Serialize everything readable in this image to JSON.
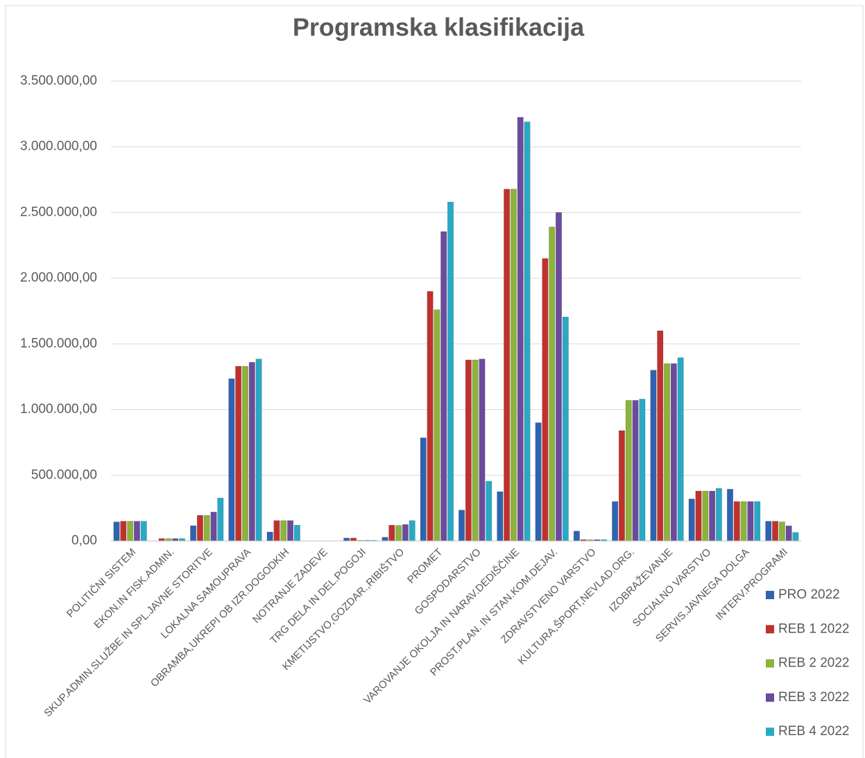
{
  "chart_data": {
    "type": "bar",
    "title": "Programska klasifikacija",
    "categories": [
      "POLITIČNI SISTEM",
      "EKON.IN FISK.ADMIN.",
      "SKUP.ADMIN.SLUŽBE IN SPL.JAVNE STORITVE",
      "LOKALNA SAMOUPRAVA",
      "OBRAMBA,UKREPI OB IZR.DOGODKIH",
      "NOTRANJE ZADEVE",
      "TRG DELA IN DEL.POGOJI",
      "KMETIJSTVO,GOZDAR.,RIBIŠTVO",
      "PROMET",
      "GOSPODARSTVO",
      "VAROVANJE OKOLJA IN NARAV.DEDIŠČINE",
      "PROST.PLAN. IN STAN.KOM.DEJAV.",
      "ZDRAVSTVENO VARSTVO",
      "KULTURA,ŠPORT,NEVLAD.ORG.",
      "IZOBRAŽEVANJE",
      "SOCIALNO VARSTVO",
      "SERVIS.JAVNEGA DOLGA",
      "INTERV.PROGRAMI"
    ],
    "series": [
      {
        "name": "PRO 2022",
        "color": "#2f63b0",
        "values": [
          145000,
          0,
          116000,
          1235000,
          68000,
          0,
          22000,
          28000,
          785000,
          235000,
          375000,
          900000,
          75000,
          300000,
          1300000,
          320000,
          394000,
          150000
        ]
      },
      {
        "name": "REB 1 2022",
        "color": "#c0312e",
        "values": [
          150000,
          18000,
          195000,
          1330000,
          155000,
          0,
          22000,
          120000,
          1900000,
          1378000,
          2678000,
          2150000,
          10000,
          840000,
          1600000,
          380000,
          300000,
          150000
        ]
      },
      {
        "name": "REB 2 2022",
        "color": "#8cb33a",
        "values": [
          150000,
          18000,
          195000,
          1330000,
          155000,
          0,
          5000,
          118000,
          1760000,
          1378000,
          2678000,
          2390000,
          10000,
          1070000,
          1350000,
          380000,
          300000,
          145000
        ]
      },
      {
        "name": "REB 3 2022",
        "color": "#6b4b9e",
        "values": [
          150000,
          18000,
          220000,
          1360000,
          155000,
          0,
          5000,
          125000,
          2355000,
          1385000,
          3225000,
          2500000,
          10000,
          1070000,
          1350000,
          380000,
          300000,
          115000
        ]
      },
      {
        "name": "REB 4 2022",
        "color": "#2aa9c6",
        "values": [
          150000,
          18000,
          327000,
          1385000,
          120000,
          0,
          5000,
          155000,
          2580000,
          455000,
          3190000,
          1705000,
          10000,
          1080000,
          1395000,
          400000,
          300000,
          65000
        ]
      }
    ],
    "ylim": [
      0,
      3500000
    ],
    "yticks": [
      {
        "value": 0,
        "label": "0,00"
      },
      {
        "value": 500000,
        "label": "500.000,00"
      },
      {
        "value": 1000000,
        "label": "1.000.000,00"
      },
      {
        "value": 1500000,
        "label": "1.500.000,00"
      },
      {
        "value": 2000000,
        "label": "2.000.000,00"
      },
      {
        "value": 2500000,
        "label": "2.500.000,00"
      },
      {
        "value": 3000000,
        "label": "3.000.000,00"
      },
      {
        "value": 3500000,
        "label": "3.500.000,00"
      }
    ],
    "grid": true,
    "legend": "right"
  }
}
